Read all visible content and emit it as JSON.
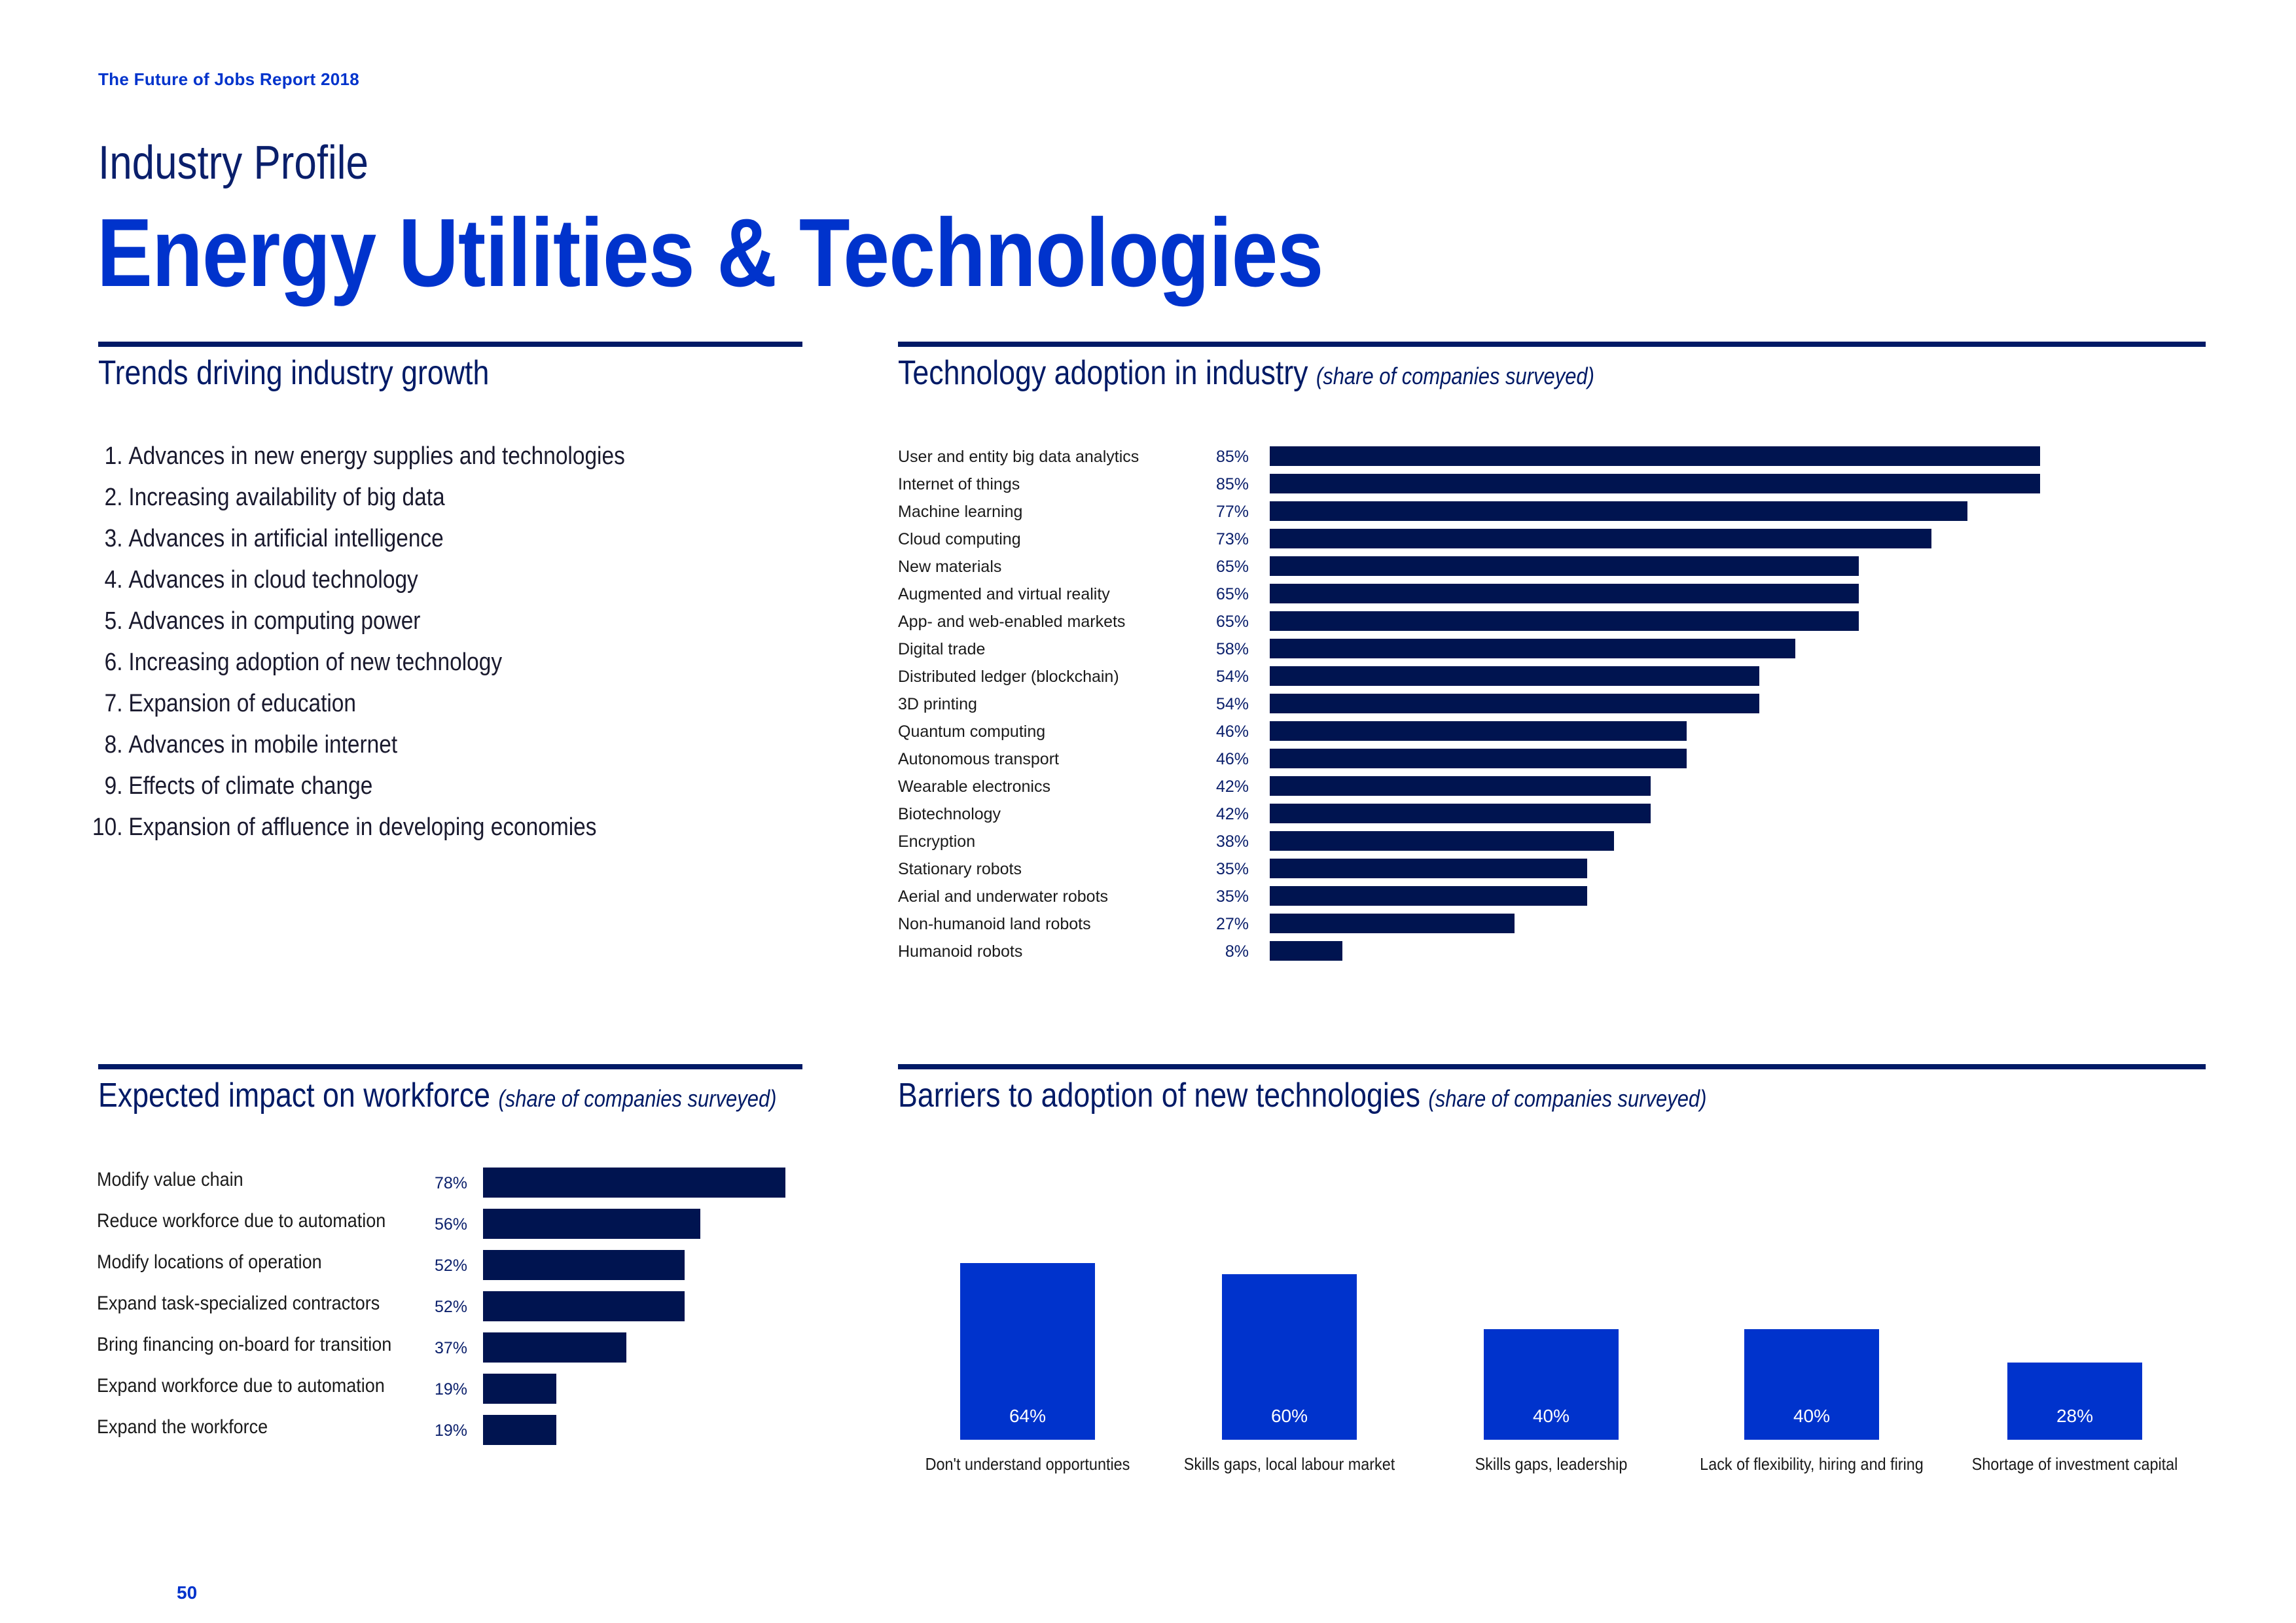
{
  "header": {
    "report": "The Future of Jobs Report 2018",
    "profile": "Industry Profile",
    "title": "Energy Utilities & Technologies"
  },
  "trends": {
    "title": "Trends driving industry growth",
    "items": [
      {
        "num": "1.",
        "text": "Advances in new energy supplies and technologies"
      },
      {
        "num": "2.",
        "text": "Increasing availability of big data"
      },
      {
        "num": "3.",
        "text": "Advances in artificial intelligence"
      },
      {
        "num": "4.",
        "text": "Advances in cloud technology"
      },
      {
        "num": "5.",
        "text": "Advances in computing power"
      },
      {
        "num": "6.",
        "text": "Increasing adoption of new technology"
      },
      {
        "num": "7.",
        "text": "Expansion of education"
      },
      {
        "num": "8.",
        "text": "Advances in mobile internet"
      },
      {
        "num": "9.",
        "text": "Effects of climate change"
      },
      {
        "num": "10.",
        "text": "Expansion of affluence in developing economies"
      }
    ]
  },
  "technology": {
    "title": "Technology adoption in industry",
    "note": "(share of companies surveyed)"
  },
  "workforce": {
    "title": "Expected impact on workforce",
    "note": "(share of companies surveyed)"
  },
  "barriers": {
    "title": "Barriers to adoption of new technologies",
    "note": "(share of companies surveyed)"
  },
  "page_number": "50",
  "colors": {
    "navy": "#001450",
    "accent": "#0033cc"
  },
  "chart_data": [
    {
      "type": "bar",
      "orientation": "horizontal",
      "categories": [
        "User and entity big data analytics",
        "Internet of things",
        "Machine learning",
        "Cloud computing",
        "New materials",
        "Augmented and virtual reality",
        "App- and web-enabled markets",
        "Digital trade",
        "Distributed ledger (blockchain)",
        "3D printing",
        "Quantum computing",
        "Autonomous transport",
        "Wearable electronics",
        "Biotechnology",
        "Encryption",
        "Stationary robots",
        "Aerial and underwater robots",
        "Non-humanoid land robots",
        "Humanoid robots"
      ],
      "values": [
        85,
        85,
        77,
        73,
        65,
        65,
        65,
        58,
        54,
        54,
        46,
        46,
        42,
        42,
        38,
        35,
        35,
        27,
        8
      ],
      "labels": [
        "85%",
        "85%",
        "77%",
        "73%",
        "65%",
        "65%",
        "65%",
        "58%",
        "54%",
        "54%",
        "46%",
        "46%",
        "42%",
        "42%",
        "38%",
        "35%",
        "35%",
        "27%",
        "8%"
      ],
      "xlim": [
        0,
        100
      ]
    },
    {
      "type": "bar",
      "orientation": "horizontal",
      "categories": [
        "Modify value chain",
        "Reduce workforce due to automation",
        "Modify locations of operation",
        "Expand task-specialized contractors",
        "Bring financing on-board for transition",
        "Expand workforce due to automation",
        "Expand the workforce"
      ],
      "values": [
        78,
        56,
        52,
        52,
        37,
        19,
        19
      ],
      "labels": [
        "78%",
        "56%",
        "52%",
        "52%",
        "37%",
        "19%",
        "19%"
      ],
      "xlim": [
        0,
        100
      ]
    },
    {
      "type": "bar",
      "orientation": "vertical",
      "categories": [
        "Don't understand opportunties",
        "Skills gaps, local labour market",
        "Skills gaps, leadership",
        "Lack of flexibility, hiring and firing",
        "Shortage of investment capital"
      ],
      "values": [
        64,
        60,
        40,
        40,
        28
      ],
      "labels": [
        "64%",
        "60%",
        "40%",
        "40%",
        "28%"
      ],
      "ylim": [
        0,
        100
      ]
    }
  ]
}
